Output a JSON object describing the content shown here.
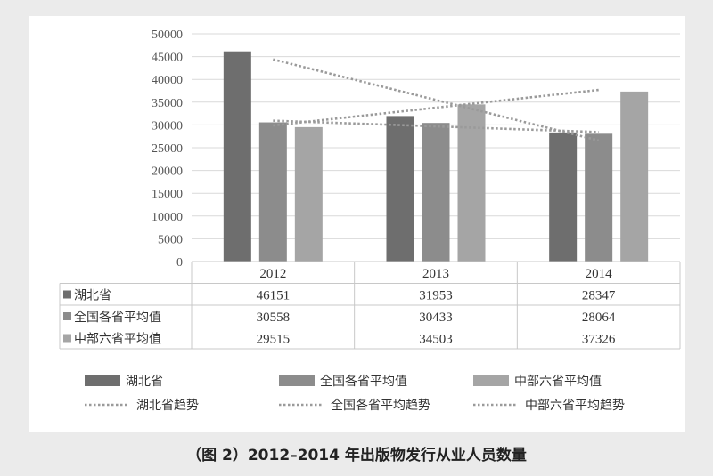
{
  "caption": "（图 2）2012–2014 年出版物发行从业人员数量",
  "colors": {
    "hubei": "#6e6e6e",
    "national": "#8c8c8c",
    "central": "#a5a5a5",
    "trend": "#9a9a9a",
    "grid": "#d9d9d9",
    "table_border": "#c8c8c8"
  },
  "chart_data": {
    "type": "bar",
    "categories": [
      "2012",
      "2013",
      "2014"
    ],
    "ylim": [
      0,
      50000
    ],
    "yticks": [
      "0",
      "5000",
      "10000",
      "15000",
      "20000",
      "25000",
      "30000",
      "35000",
      "40000",
      "45000",
      "50000"
    ],
    "series": [
      {
        "name": "湖北省",
        "values": [
          46151,
          31953,
          28347
        ]
      },
      {
        "name": "全国各省平均值",
        "values": [
          30558,
          30433,
          28064
        ]
      },
      {
        "name": "中部六省平均值",
        "values": [
          29515,
          34503,
          37326
        ]
      }
    ],
    "trendlines": [
      {
        "name": "湖北省趋势",
        "series": "湖北省"
      },
      {
        "name": "全国各省平均趋势",
        "series": "全国各省平均值"
      },
      {
        "name": "中部六省平均趋势",
        "series": "中部六省平均值"
      }
    ],
    "data_table": true,
    "grid": true,
    "legend_position": "bottom"
  }
}
